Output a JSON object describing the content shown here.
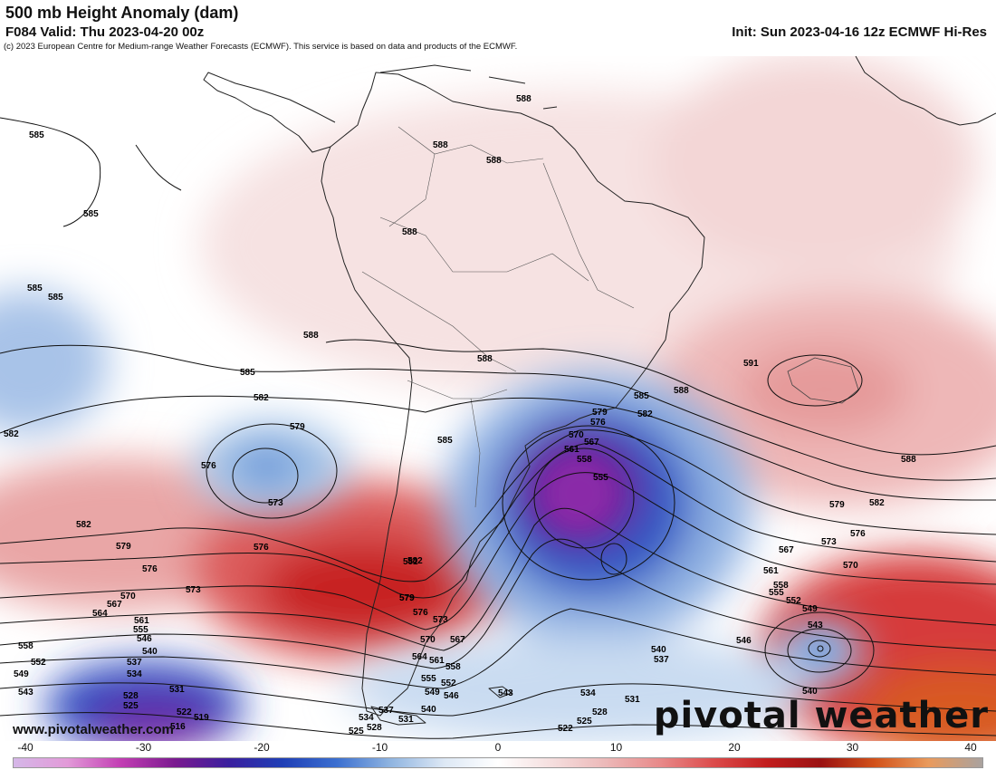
{
  "header": {
    "title": "500 mb Height Anomaly (dam)",
    "valid": "F084 Valid: Thu 2023-04-20 00z",
    "init": "Init: Sun 2023-04-16 12z ECMWF Hi-Res",
    "credit": "(c) 2023 European Centre for Medium-range Weather Forecasts (ECMWF). This service is based on data and products of the ECMWF."
  },
  "watermark": {
    "url": "www.pivotalweather.com",
    "brand": "pivotal weather"
  },
  "colorbar": {
    "ticks": [
      "-40",
      "-30",
      "-20",
      "-10",
      "0",
      "10",
      "20",
      "30",
      "40"
    ],
    "colors": [
      "#d5b7e8",
      "#e29ad8",
      "#c23db3",
      "#7a1a8f",
      "#3a1f9e",
      "#1f3fb6",
      "#3b6fd0",
      "#8fb4e0",
      "#dde8f5",
      "#ffffff",
      "#f5dede",
      "#ecb8b8",
      "#e88a8a",
      "#dc4c4c",
      "#c21d1d",
      "#9a1212",
      "#d2521a",
      "#e99a5c",
      "#a9a29f"
    ]
  },
  "contour_labels": {
    "l585a": "585",
    "l585b": "585",
    "l585c": "585",
    "l585d": "585",
    "l585e": "585",
    "l585f": "585",
    "l585g": "585",
    "l588a": "588",
    "l588b": "588",
    "l588c": "588",
    "l588d": "588",
    "l588e": "588",
    "l588f": "588",
    "l588g": "588",
    "l588h": "588",
    "l591": "591",
    "l582a": "582",
    "l582b": "582",
    "l582c": "582",
    "l582d": "582",
    "l582e": "582",
    "l582f": "582",
    "l582g": "582",
    "l579a": "579",
    "l579b": "579",
    "l579c": "579",
    "l579d": "579",
    "l579e": "579",
    "l579f": "579",
    "l576a": "576",
    "l576b": "576",
    "l576c": "576",
    "l576d": "576",
    "l576e": "576",
    "l576f": "576",
    "l573a": "573",
    "l573b": "573",
    "l573c": "573",
    "l573d": "573",
    "l570a": "570",
    "l570b": "570",
    "l570c": "570",
    "l570d": "570",
    "l567a": "567",
    "l567b": "567",
    "l567c": "567",
    "l567d": "567",
    "l564a": "564",
    "l564b": "564",
    "l561a": "561",
    "l561b": "561",
    "l561c": "561",
    "l561d": "561",
    "l558a": "558",
    "l558b": "558",
    "l558c": "558",
    "l558d": "558",
    "l555a": "555",
    "l555b": "555",
    "l555c": "555",
    "l555d": "555",
    "l552a": "552",
    "l552b": "552",
    "l552c": "552",
    "l549a": "549",
    "l549b": "549",
    "l549c": "549",
    "l546a": "546",
    "l546b": "546",
    "l546c": "546",
    "l543a": "543",
    "l543b": "543",
    "l543c": "543",
    "l540a": "540",
    "l540b": "540",
    "l540c": "540",
    "l540d": "540",
    "l537a": "537",
    "l537b": "537",
    "l537c": "537",
    "l534a": "534",
    "l534b": "534",
    "l534c": "534",
    "l531a": "531",
    "l531b": "531",
    "l531c": "531",
    "l528a": "528",
    "l528b": "528",
    "l528c": "528",
    "l525a": "525",
    "l525b": "525",
    "l525c": "525",
    "l522a": "522",
    "l522b": "522",
    "l519": "519",
    "l516": "516"
  }
}
